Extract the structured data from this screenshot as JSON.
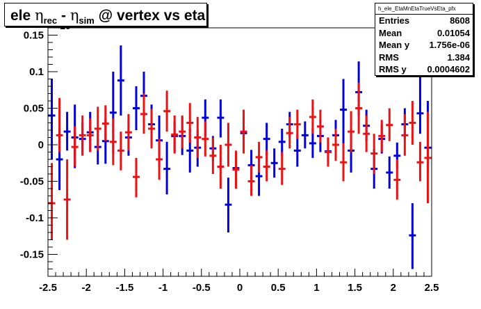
{
  "title": {
    "main": "ele ",
    "eta1": "η",
    "sub1": "rec",
    "dash": " - ",
    "eta2": "η",
    "sub2": "sim",
    "rest": " @ vertex vs eta"
  },
  "axis_exponent": "×10",
  "stats": {
    "name": "h_ele_EtaMnEtaTrueVsEta_pfx",
    "rows": [
      {
        "label": "Entries",
        "value": "8608"
      },
      {
        "label": "Mean",
        "value": "0.01054"
      },
      {
        "label": "Mean y",
        "value": "1.756e-06"
      },
      {
        "label": "RMS",
        "value": "1.384"
      },
      {
        "label": "RMS y",
        "value": "0.0004602"
      }
    ]
  },
  "colors": {
    "blue": "#0000dd",
    "red": "#ee1111"
  },
  "chart_data": {
    "type": "scatter",
    "xlim": [
      -2.5,
      2.5
    ],
    "ylim": [
      -0.18,
      0.16
    ],
    "y_scale_note": "×10",
    "x_ticks": [
      "-2.5",
      "-2",
      "-1.5",
      "-1",
      "-0.5",
      "0",
      "0.5",
      "1",
      "1.5",
      "2",
      "2.5"
    ],
    "x_tick_values": [
      -2.5,
      -2,
      -1.5,
      -1,
      -0.5,
      0,
      0.5,
      1,
      1.5,
      2,
      2.5
    ],
    "y_ticks": [
      "0.15",
      "0.1",
      "0.05",
      "0",
      "-0.05",
      "-0.1",
      "-0.15"
    ],
    "y_tick_values": [
      0.15,
      0.1,
      0.05,
      0,
      -0.05,
      -0.1,
      -0.15
    ],
    "series": [
      {
        "color": "blue",
        "points": [
          {
            "x": -2.45,
            "y": 0.04,
            "lo": -0.02,
            "hi": 0.09
          },
          {
            "x": -2.35,
            "y": -0.02,
            "lo": -0.062,
            "hi": 0.022
          },
          {
            "x": -2.25,
            "y": 0.018,
            "lo": -0.008,
            "hi": 0.045
          },
          {
            "x": -2.15,
            "y": 0.01,
            "lo": -0.032,
            "hi": 0.055
          },
          {
            "x": -2.05,
            "y": 0.008,
            "lo": -0.014,
            "hi": 0.03
          },
          {
            "x": -1.95,
            "y": 0.017,
            "lo": -0.01,
            "hi": 0.045
          },
          {
            "x": -1.85,
            "y": -0.003,
            "lo": -0.027,
            "hi": 0.02
          },
          {
            "x": -1.75,
            "y": 0.005,
            "lo": -0.026,
            "hi": 0.036
          },
          {
            "x": -1.65,
            "y": 0.044,
            "lo": -0.012,
            "hi": 0.1
          },
          {
            "x": -1.55,
            "y": 0.088,
            "lo": 0.04,
            "hi": 0.136
          },
          {
            "x": -1.45,
            "y": 0.01,
            "lo": -0.015,
            "hi": 0.035
          },
          {
            "x": -1.35,
            "y": 0.05,
            "lo": 0.02,
            "hi": 0.08
          },
          {
            "x": -1.25,
            "y": 0.067,
            "lo": 0.036,
            "hi": 0.1
          },
          {
            "x": -1.15,
            "y": 0.028,
            "lo": 0.001,
            "hi": 0.055
          },
          {
            "x": -1.05,
            "y": 0.006,
            "lo": -0.03,
            "hi": 0.04
          },
          {
            "x": -0.95,
            "y": -0.033,
            "lo": -0.068,
            "hi": 0.004
          },
          {
            "x": -0.85,
            "y": 0.012,
            "lo": -0.01,
            "hi": 0.032
          },
          {
            "x": -0.75,
            "y": 0.012,
            "lo": -0.014,
            "hi": 0.038
          },
          {
            "x": -0.65,
            "y": -0.008,
            "lo": -0.038,
            "hi": 0.022
          },
          {
            "x": -0.55,
            "y": -0.004,
            "lo": -0.03,
            "hi": 0.02
          },
          {
            "x": -0.45,
            "y": 0.037,
            "lo": 0.012,
            "hi": 0.062
          },
          {
            "x": -0.35,
            "y": -0.005,
            "lo": -0.022,
            "hi": 0.012
          },
          {
            "x": -0.25,
            "y": 0.037,
            "lo": 0.01,
            "hi": 0.062
          },
          {
            "x": -0.15,
            "y": -0.082,
            "lo": -0.12,
            "hi": -0.045
          },
          {
            "x": -0.05,
            "y": -0.032,
            "lo": -0.055,
            "hi": -0.01
          },
          {
            "x": 0.05,
            "y": 0.016,
            "lo": -0.005,
            "hi": 0.04
          },
          {
            "x": 0.15,
            "y": -0.028,
            "lo": -0.05,
            "hi": -0.007
          },
          {
            "x": 0.25,
            "y": -0.043,
            "lo": -0.07,
            "hi": -0.018
          },
          {
            "x": 0.35,
            "y": 0.008,
            "lo": -0.015,
            "hi": 0.03
          },
          {
            "x": 0.45,
            "y": -0.025,
            "lo": -0.045,
            "hi": -0.005
          },
          {
            "x": 0.55,
            "y": 0.004,
            "lo": -0.015,
            "hi": 0.022
          },
          {
            "x": 0.65,
            "y": 0.028,
            "lo": 0.01,
            "hi": 0.045
          },
          {
            "x": 0.75,
            "y": -0.008,
            "lo": -0.03,
            "hi": 0.014
          },
          {
            "x": 0.85,
            "y": 0.013,
            "lo": -0.005,
            "hi": 0.032
          },
          {
            "x": 0.95,
            "y": 0.002,
            "lo": -0.018,
            "hi": 0.022
          },
          {
            "x": 1.05,
            "y": 0.012,
            "lo": -0.01,
            "hi": 0.035
          },
          {
            "x": 1.15,
            "y": -0.009,
            "lo": -0.027,
            "hi": 0.01
          },
          {
            "x": 1.25,
            "y": 0.013,
            "lo": -0.008,
            "hi": 0.034
          },
          {
            "x": 1.35,
            "y": 0.048,
            "lo": -0.006,
            "hi": 0.09
          },
          {
            "x": 1.45,
            "y": -0.008,
            "lo": -0.038,
            "hi": 0.022
          },
          {
            "x": 1.55,
            "y": 0.072,
            "lo": 0.04,
            "hi": 0.114
          },
          {
            "x": 1.65,
            "y": 0.026,
            "lo": 0.005,
            "hi": 0.048
          },
          {
            "x": 1.75,
            "y": -0.033,
            "lo": -0.06,
            "hi": -0.006
          },
          {
            "x": 1.85,
            "y": 0.008,
            "lo": -0.012,
            "hi": 0.028
          },
          {
            "x": 1.95,
            "y": -0.038,
            "lo": -0.06,
            "hi": -0.016
          },
          {
            "x": 2.05,
            "y": -0.015,
            "lo": -0.033,
            "hi": 0.003
          },
          {
            "x": 2.15,
            "y": 0.028,
            "lo": 0.008,
            "hi": 0.05
          },
          {
            "x": 2.25,
            "y": -0.124,
            "lo": -0.17,
            "hi": -0.08
          },
          {
            "x": 2.35,
            "y": 0.043,
            "lo": 0.015,
            "hi": 0.1
          },
          {
            "x": 2.45,
            "y": -0.004,
            "lo": -0.04,
            "hi": 0.06
          }
        ]
      },
      {
        "color": "red",
        "points": [
          {
            "x": -2.45,
            "y": -0.08,
            "lo": -0.13,
            "hi": -0.025
          },
          {
            "x": -2.35,
            "y": 0.013,
            "lo": -0.01,
            "hi": 0.064
          },
          {
            "x": -2.25,
            "y": -0.075,
            "lo": -0.13,
            "hi": -0.02
          },
          {
            "x": -2.15,
            "y": -0.003,
            "lo": -0.03,
            "hi": 0.025
          },
          {
            "x": -2.05,
            "y": 0.013,
            "lo": -0.015,
            "hi": 0.04
          },
          {
            "x": -1.95,
            "y": 0.013,
            "lo": -0.01,
            "hi": 0.036
          },
          {
            "x": -1.85,
            "y": 0.022,
            "lo": -0.008,
            "hi": 0.052
          },
          {
            "x": -1.75,
            "y": 0.029,
            "lo": 0.005,
            "hi": 0.054
          },
          {
            "x": -1.65,
            "y": 0.004,
            "lo": -0.028,
            "hi": 0.036
          },
          {
            "x": -1.55,
            "y": -0.008,
            "lo": -0.035,
            "hi": 0.018
          },
          {
            "x": -1.45,
            "y": 0.017,
            "lo": -0.008,
            "hi": 0.042
          },
          {
            "x": -1.35,
            "y": -0.044,
            "lo": -0.072,
            "hi": -0.018
          },
          {
            "x": -1.25,
            "y": 0.042,
            "lo": 0.015,
            "hi": 0.07
          },
          {
            "x": -1.15,
            "y": 0.022,
            "lo": -0.005,
            "hi": 0.049
          },
          {
            "x": -1.05,
            "y": -0.02,
            "lo": -0.048,
            "hi": 0.008
          },
          {
            "x": -0.95,
            "y": 0.046,
            "lo": 0.018,
            "hi": 0.074
          },
          {
            "x": -0.85,
            "y": 0.014,
            "lo": -0.012,
            "hi": 0.04
          },
          {
            "x": -0.75,
            "y": 0.018,
            "lo": -0.005,
            "hi": 0.04
          },
          {
            "x": -0.65,
            "y": 0.03,
            "lo": 0.003,
            "hi": 0.057
          },
          {
            "x": -0.55,
            "y": 0.01,
            "lo": -0.018,
            "hi": 0.038
          },
          {
            "x": -0.45,
            "y": 0.008,
            "lo": -0.016,
            "hi": 0.032
          },
          {
            "x": -0.35,
            "y": -0.015,
            "lo": -0.04,
            "hi": 0.01
          },
          {
            "x": -0.25,
            "y": -0.03,
            "lo": -0.06,
            "hi": 0.0
          },
          {
            "x": -0.15,
            "y": 0.0,
            "lo": -0.03,
            "hi": 0.03
          },
          {
            "x": -0.05,
            "y": -0.034,
            "lo": -0.06,
            "hi": -0.008
          },
          {
            "x": 0.05,
            "y": 0.018,
            "lo": -0.012,
            "hi": 0.048
          },
          {
            "x": 0.15,
            "y": -0.05,
            "lo": -0.07,
            "hi": -0.028
          },
          {
            "x": 0.25,
            "y": -0.017,
            "lo": -0.038,
            "hi": 0.004
          },
          {
            "x": 0.35,
            "y": -0.03,
            "lo": -0.05,
            "hi": -0.008
          },
          {
            "x": 0.55,
            "y": -0.033,
            "lo": -0.055,
            "hi": -0.01
          },
          {
            "x": 0.65,
            "y": 0.016,
            "lo": -0.005,
            "hi": 0.038
          },
          {
            "x": 0.75,
            "y": 0.028,
            "lo": 0.008,
            "hi": 0.048
          },
          {
            "x": 0.95,
            "y": 0.038,
            "lo": 0.015,
            "hi": 0.062
          },
          {
            "x": 1.05,
            "y": 0.025,
            "lo": 0.003,
            "hi": 0.048
          },
          {
            "x": 1.15,
            "y": -0.01,
            "lo": -0.03,
            "hi": 0.01
          },
          {
            "x": 1.25,
            "y": 0.0,
            "lo": -0.022,
            "hi": 0.022
          },
          {
            "x": 1.35,
            "y": -0.024,
            "lo": -0.05,
            "hi": 0.002
          },
          {
            "x": 1.45,
            "y": 0.018,
            "lo": -0.01,
            "hi": 0.046
          },
          {
            "x": 1.55,
            "y": 0.05,
            "lo": 0.015,
            "hi": 0.085
          },
          {
            "x": 1.65,
            "y": 0.015,
            "lo": -0.01,
            "hi": 0.04
          },
          {
            "x": 1.75,
            "y": -0.012,
            "lo": -0.04,
            "hi": 0.015
          },
          {
            "x": 1.85,
            "y": 0.012,
            "lo": -0.01,
            "hi": 0.034
          },
          {
            "x": 1.95,
            "y": 0.027,
            "lo": 0.005,
            "hi": 0.05
          },
          {
            "x": 2.05,
            "y": -0.048,
            "lo": -0.075,
            "hi": -0.02
          },
          {
            "x": 2.15,
            "y": 0.013,
            "lo": -0.015,
            "hi": 0.042
          },
          {
            "x": 2.25,
            "y": 0.03,
            "lo": 0.0,
            "hi": 0.06
          },
          {
            "x": 2.35,
            "y": -0.024,
            "lo": -0.05,
            "hi": 0.004
          },
          {
            "x": 2.45,
            "y": -0.018,
            "lo": -0.08,
            "hi": 0.045
          }
        ]
      }
    ]
  }
}
